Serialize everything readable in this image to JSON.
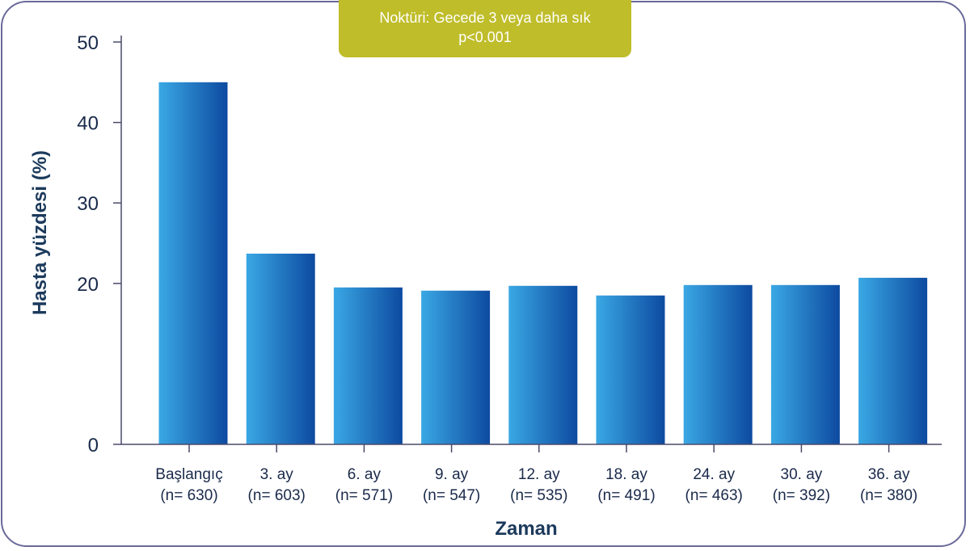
{
  "banner": {
    "line1": "Noktüri: Gecede 3 veya daha sık",
    "line2": "p<0.001"
  },
  "colors": {
    "bar_light": "#3aa8e4",
    "bar_dark": "#0d4aa0",
    "banner": "#bfbd2a",
    "frame": "#6a6a9a",
    "axis_text": "#1c3a5c"
  },
  "chart_data": {
    "type": "bar",
    "categories": [
      "Başlangıç",
      "3. ay",
      "6. ay",
      "9. ay",
      "12. ay",
      "18. ay",
      "24. ay",
      "30. ay",
      "36. ay"
    ],
    "category_n": [
      "(n= 630)",
      "(n= 603)",
      "(n= 571)",
      "(n= 547)",
      "(n= 535)",
      "(n= 491)",
      "(n= 463)",
      "(n= 392)",
      "(n= 380)"
    ],
    "values": [
      45.0,
      23.7,
      19.5,
      19.1,
      19.7,
      18.5,
      19.8,
      19.8,
      20.7
    ],
    "yticks": [
      "0",
      "20",
      "30",
      "40",
      "50"
    ],
    "ytick_values": [
      0,
      20,
      30,
      40,
      50
    ],
    "ylim": [
      0,
      50
    ],
    "xlabel": "Zaman",
    "ylabel": "Hasta yüzdesi (%)",
    "grid": false,
    "legend": "none"
  }
}
